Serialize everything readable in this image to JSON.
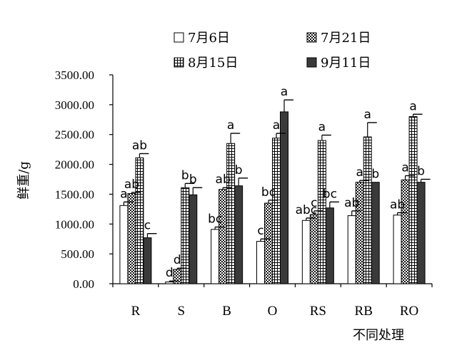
{
  "chart_data": {
    "type": "bar",
    "title": "",
    "xlabel": "不同处理",
    "ylabel": "鲜重/g",
    "ylim": [
      0,
      3500
    ],
    "yticks": [
      "0.00",
      "500.00",
      "1000.00",
      "1500.00",
      "2000.00",
      "2500.00",
      "3000.00",
      "3500.00"
    ],
    "categories": [
      "R",
      "S",
      "B",
      "O",
      "RS",
      "RB",
      "RO"
    ],
    "legend_position": "top",
    "series": [
      {
        "name": "7月6日",
        "style": "white",
        "values": [
          1310,
          30,
          910,
          710,
          1060,
          1140,
          1150
        ],
        "errors": [
          60,
          15,
          40,
          40,
          40,
          80,
          40
        ],
        "labels": [
          "a",
          "d",
          "bc",
          "c",
          "abc",
          "ab",
          "ab"
        ]
      },
      {
        "name": "7月21日",
        "style": "checker",
        "values": [
          1510,
          240,
          1580,
          1350,
          1160,
          1700,
          1740
        ],
        "errors": [
          20,
          20,
          30,
          50,
          60,
          30,
          70
        ],
        "labels": [
          "ab",
          "d",
          "ab",
          "bc",
          "c",
          "a",
          "a"
        ]
      },
      {
        "name": "8月15日",
        "style": "grid",
        "values": [
          2110,
          1610,
          2350,
          2440,
          2400,
          2460,
          2800
        ],
        "errors": [
          70,
          70,
          170,
          80,
          90,
          240,
          40
        ],
        "labels": [
          "ab",
          "b",
          "a",
          "a",
          "a",
          "a",
          "a"
        ]
      },
      {
        "name": "9月11日",
        "style": "dark",
        "values": [
          770,
          1490,
          1640,
          2880,
          1270,
          1700,
          1700
        ],
        "errors": [
          70,
          120,
          130,
          200,
          100,
          0,
          50
        ],
        "labels": [
          "c",
          "b",
          "b",
          "a",
          "bc",
          "b",
          "b"
        ]
      }
    ]
  }
}
